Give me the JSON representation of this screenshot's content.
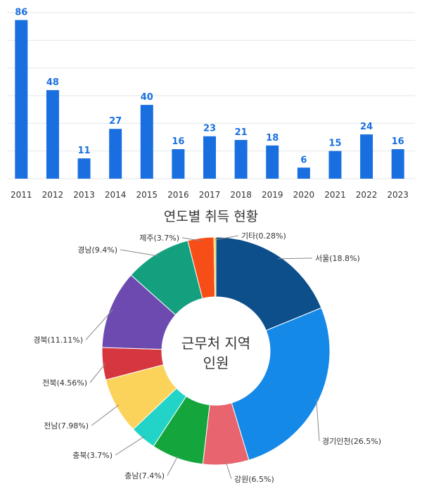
{
  "chart_data": [
    {
      "type": "bar",
      "categories": [
        "2011",
        "2012",
        "2013",
        "2014",
        "2015",
        "2016",
        "2017",
        "2018",
        "2019",
        "2020",
        "2021",
        "2022",
        "2023"
      ],
      "values": [
        86,
        48,
        11,
        27,
        40,
        16,
        23,
        21,
        18,
        6,
        15,
        24,
        16
      ],
      "title": "",
      "ylim": [
        0,
        90
      ],
      "grid": true,
      "bar_color": "#1a6fe0",
      "label_color": "#1a6fe0"
    },
    {
      "type": "pie",
      "donut": true,
      "title": "연도별 취득 현황",
      "center_label": [
        "근무처 지역",
        "인원"
      ],
      "slices": [
        {
          "label": "서울(18.8%)",
          "value": 18.8,
          "color": "#0d4f8b"
        },
        {
          "label": "경기인천(26.5%)",
          "value": 26.5,
          "color": "#1589e8"
        },
        {
          "label": "강원(6.5%)",
          "value": 6.5,
          "color": "#e8646f"
        },
        {
          "label": "충남(7.4%)",
          "value": 7.4,
          "color": "#14a63d"
        },
        {
          "label": "충북(3.7%)",
          "value": 3.7,
          "color": "#22d3c8"
        },
        {
          "label": "전남(7.98%)",
          "value": 7.98,
          "color": "#fbd35a"
        },
        {
          "label": "전북(4.56%)",
          "value": 4.56,
          "color": "#d6373f"
        },
        {
          "label": "경북(11.11%)",
          "value": 11.11,
          "color": "#6c4ab0"
        },
        {
          "label": "경남(9.4%)",
          "value": 9.4,
          "color": "#14a07e"
        },
        {
          "label": "제주(3.7%)",
          "value": 3.7,
          "color": "#f74d17"
        },
        {
          "label": "기타(0.28%)",
          "value": 0.28,
          "color": "#f2c81a"
        }
      ]
    }
  ]
}
